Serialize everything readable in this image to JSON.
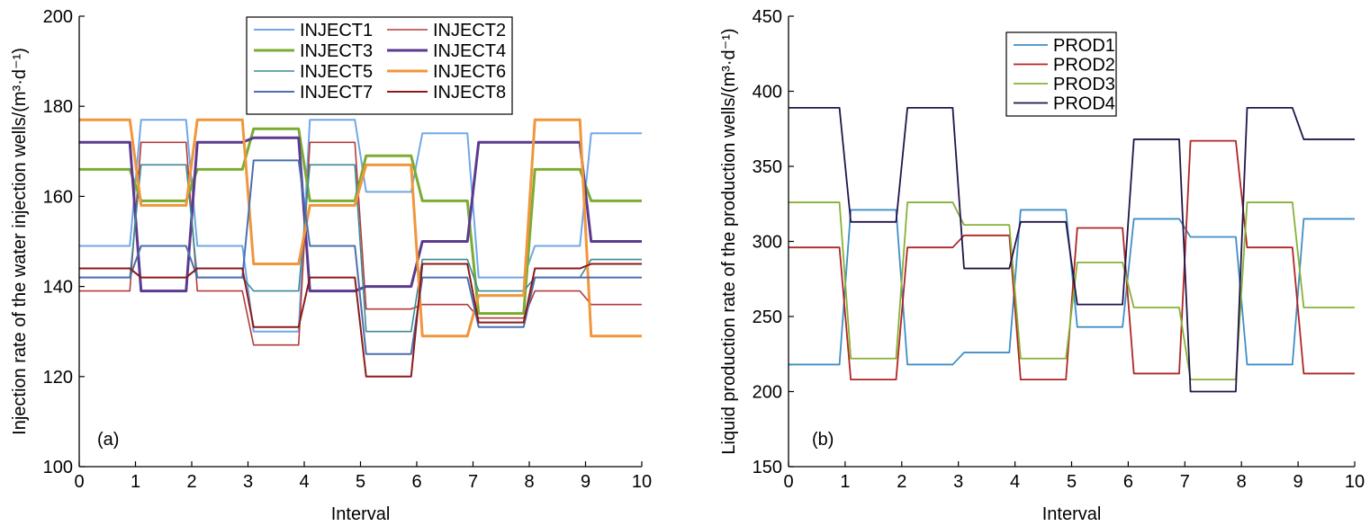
{
  "chart_data": [
    {
      "type": "line",
      "panel_label": "(a)",
      "xlabel": "Interval",
      "ylabel": "Injection rate of the water injection wells/(m³·d⁻¹)",
      "xlim": [
        0,
        10
      ],
      "ylim": [
        100,
        200
      ],
      "xticks": [
        0,
        1,
        2,
        3,
        4,
        5,
        6,
        7,
        8,
        9,
        10
      ],
      "yticks": [
        100,
        120,
        140,
        160,
        180,
        200
      ],
      "x": [
        0,
        0.9,
        1.1,
        1.9,
        2.1,
        2.9,
        3.1,
        3.9,
        4.1,
        4.9,
        5.1,
        5.9,
        6.1,
        6.9,
        7.1,
        7.9,
        8.1,
        8.9,
        9.1,
        10
      ],
      "legend_columns": 2,
      "legend_position": "top-center",
      "series": [
        {
          "name": "INJECT1",
          "color": "#6fa8e6",
          "width": 2.0,
          "values": [
            149,
            149,
            177,
            177,
            149,
            149,
            130,
            130,
            177,
            177,
            161,
            161,
            174,
            174,
            142,
            142,
            149,
            149,
            174,
            174
          ]
        },
        {
          "name": "INJECT2",
          "color": "#b43c3c",
          "width": 1.6,
          "values": [
            139,
            139,
            172,
            172,
            139,
            139,
            127,
            127,
            172,
            172,
            135,
            135,
            136,
            136,
            133,
            133,
            139,
            139,
            136,
            136
          ]
        },
        {
          "name": "INJECT3",
          "color": "#7aac32",
          "width": 3.0,
          "values": [
            166,
            166,
            159,
            159,
            166,
            166,
            175,
            175,
            159,
            159,
            169,
            169,
            159,
            159,
            134,
            134,
            166,
            166,
            159,
            159
          ]
        },
        {
          "name": "INJECT4",
          "color": "#5b3a8f",
          "width": 3.0,
          "values": [
            172,
            172,
            139,
            139,
            172,
            172,
            173,
            173,
            139,
            139,
            140,
            140,
            150,
            150,
            172,
            172,
            172,
            172,
            150,
            150
          ]
        },
        {
          "name": "INJECT5",
          "color": "#3d8a95",
          "width": 1.6,
          "values": [
            142,
            142,
            167,
            167,
            142,
            142,
            139,
            139,
            167,
            167,
            130,
            130,
            146,
            146,
            139,
            139,
            142,
            142,
            146,
            146
          ]
        },
        {
          "name": "INJECT6",
          "color": "#f0963c",
          "width": 3.0,
          "values": [
            177,
            177,
            158,
            158,
            177,
            177,
            145,
            145,
            158,
            158,
            167,
            167,
            129,
            129,
            138,
            138,
            177,
            177,
            129,
            129
          ]
        },
        {
          "name": "INJECT7",
          "color": "#4b6fb0",
          "width": 2.0,
          "values": [
            142,
            142,
            149,
            149,
            142,
            142,
            168,
            168,
            149,
            149,
            125,
            125,
            142,
            142,
            131,
            131,
            142,
            142,
            142,
            142
          ]
        },
        {
          "name": "INJECT8",
          "color": "#8b1a1a",
          "width": 2.0,
          "values": [
            144,
            144,
            142,
            142,
            144,
            144,
            131,
            131,
            142,
            142,
            120,
            120,
            145,
            145,
            132,
            132,
            144,
            144,
            145,
            145
          ]
        }
      ]
    },
    {
      "type": "line",
      "panel_label": "(b)",
      "xlabel": "Interval",
      "ylabel": "Liquid production rate of the production wells/(m³·d⁻¹)",
      "xlim": [
        0,
        10
      ],
      "ylim": [
        150,
        450
      ],
      "xticks": [
        0,
        1,
        2,
        3,
        4,
        5,
        6,
        7,
        8,
        9,
        10
      ],
      "yticks": [
        150,
        200,
        250,
        300,
        350,
        400,
        450
      ],
      "x": [
        0,
        0.9,
        1.1,
        1.9,
        2.1,
        2.9,
        3.1,
        3.9,
        4.1,
        4.9,
        5.1,
        5.9,
        6.1,
        6.9,
        7.1,
        7.9,
        8.1,
        8.9,
        9.1,
        10
      ],
      "legend_columns": 1,
      "legend_position": "top-center",
      "series": [
        {
          "name": "PROD1",
          "color": "#3f8fc6",
          "width": 1.8,
          "values": [
            218,
            218,
            321,
            321,
            218,
            218,
            226,
            226,
            321,
            321,
            243,
            243,
            315,
            315,
            303,
            303,
            218,
            218,
            315,
            315
          ]
        },
        {
          "name": "PROD2",
          "color": "#b02525",
          "width": 1.8,
          "values": [
            296,
            296,
            208,
            208,
            296,
            296,
            304,
            304,
            208,
            208,
            309,
            309,
            212,
            212,
            367,
            367,
            296,
            296,
            212,
            212
          ]
        },
        {
          "name": "PROD3",
          "color": "#86b236",
          "width": 1.8,
          "values": [
            326,
            326,
            222,
            222,
            326,
            326,
            311,
            311,
            222,
            222,
            286,
            286,
            256,
            256,
            208,
            208,
            326,
            326,
            256,
            256
          ]
        },
        {
          "name": "PROD4",
          "color": "#22144a",
          "width": 1.8,
          "values": [
            389,
            389,
            313,
            313,
            389,
            389,
            282,
            282,
            313,
            313,
            258,
            258,
            368,
            368,
            200,
            200,
            389,
            389,
            368,
            368
          ]
        }
      ]
    }
  ]
}
